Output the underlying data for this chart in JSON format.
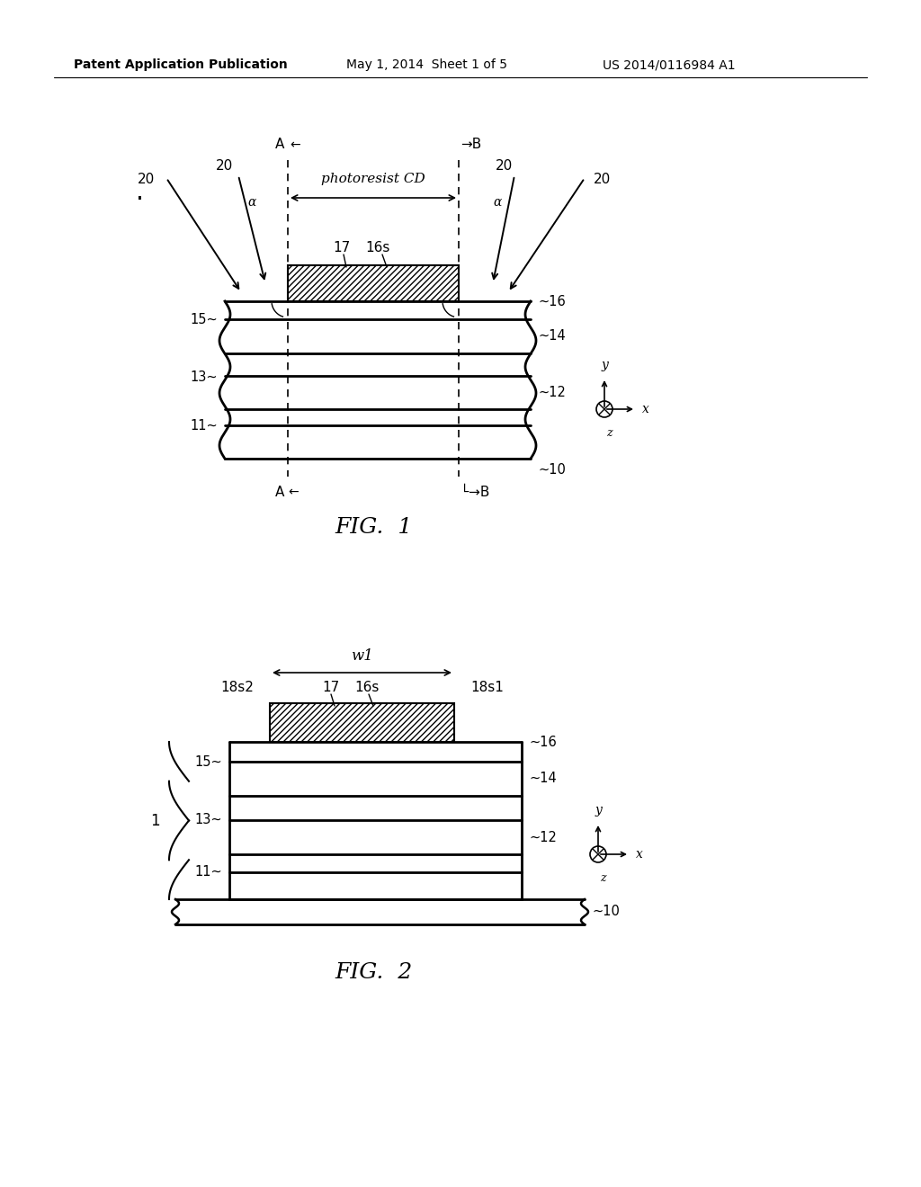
{
  "bg_color": "#ffffff",
  "header_text": "Patent Application Publication",
  "header_date": "May 1, 2014  Sheet 1 of 5",
  "header_patent": "US 2014/0116984 A1"
}
